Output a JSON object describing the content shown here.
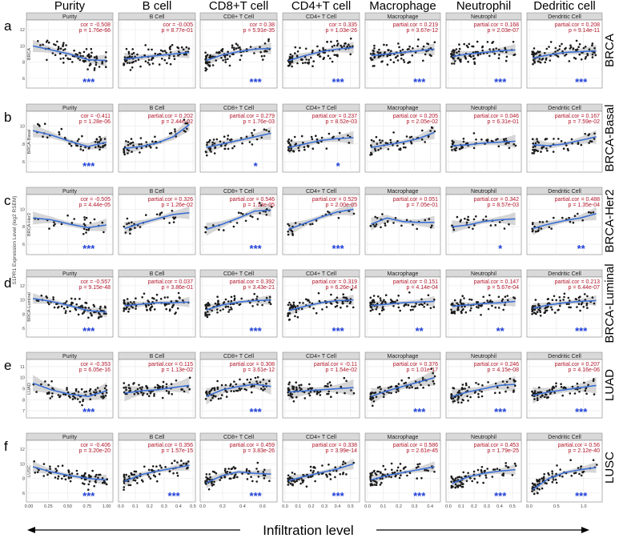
{
  "figure": {
    "columns": [
      "Purity",
      "B cell",
      "CD8+T cell",
      "CD4+T cell",
      "Macrophage",
      "Neutrophil",
      "Dedritic cell"
    ],
    "strip_labels": [
      "Purity",
      "B Cell",
      "CD8+ T Cell",
      "CD4+ T Cell",
      "Macrophage",
      "Neutrophil",
      "Dendritic Cell"
    ],
    "rows": [
      {
        "letter": "a",
        "name": "BRCA",
        "ylab": "BRCA"
      },
      {
        "letter": "b",
        "name": "BRCA-Basal",
        "ylab": "BRCA-Basal"
      },
      {
        "letter": "c",
        "name": "BRCA-Her2",
        "ylab": "BRCA-Her2"
      },
      {
        "letter": "d",
        "name": "BRCA-Luminal",
        "ylab": "BRCA-Luminal"
      },
      {
        "letter": "e",
        "name": "LUAD",
        "ylab": "LUAD"
      },
      {
        "letter": "f",
        "name": "LUSC",
        "ylab": "LUSC"
      }
    ],
    "y_axis_title": "S1PR1 Expression Level (log2 RSEM)",
    "x_axis_title": "Infiltration level",
    "colors": {
      "points": "#1a1a1a",
      "smooth": "#3b6fd4",
      "band": "#c8c8c8",
      "stats": "#b2182b",
      "stars": "#1f3fd8",
      "strip": "#d9d9d9",
      "panel_border": "#7f7f7f"
    }
  },
  "chart_data": {
    "type": "scatter",
    "x_ticks": [
      [
        "0.00",
        "0.25",
        "0.50",
        "0.75",
        "1.00"
      ],
      [
        "0.0",
        "0.1",
        "0.2",
        "0.3",
        "0.4",
        "0.5"
      ],
      [
        "0.0",
        "0.2",
        "0.4",
        "0.6"
      ],
      [
        "0.0",
        "0.1",
        "0.2",
        "0.3",
        "0.4",
        "0.5"
      ],
      [
        "0.0",
        "0.1",
        "0.2",
        "0.3",
        "0.4"
      ],
      [
        "0.0",
        "0.1",
        "0.2",
        "0.3",
        "0.4",
        "0.5"
      ],
      [
        "0.0",
        "0.5",
        "1.0"
      ]
    ],
    "x_tick_values": [
      [
        0,
        0.25,
        0.5,
        0.75,
        1.0
      ],
      [
        0,
        0.1,
        0.2,
        0.3,
        0.4,
        0.5
      ],
      [
        0,
        0.2,
        0.4,
        0.6
      ],
      [
        0,
        0.1,
        0.2,
        0.3,
        0.4,
        0.5
      ],
      [
        0,
        0.1,
        0.2,
        0.3,
        0.4
      ],
      [
        0,
        0.1,
        0.2,
        0.3,
        0.4,
        0.5
      ],
      [
        0,
        0.5,
        1.0
      ]
    ],
    "x_ranges": [
      [
        0,
        1.05
      ],
      [
        0,
        0.5
      ],
      [
        0,
        0.72
      ],
      [
        0,
        0.55
      ],
      [
        0,
        0.45
      ],
      [
        0,
        0.55
      ],
      [
        0,
        1.3
      ]
    ],
    "y_ticks": [
      [
        "6",
        "8",
        "10",
        "12"
      ],
      [
        "6",
        "8",
        "10"
      ],
      [
        "6",
        "8",
        "10"
      ],
      [
        "6",
        "8",
        "10",
        "12"
      ],
      [
        "7",
        "8",
        "9",
        "10",
        "11"
      ],
      [
        "6",
        "8",
        "10",
        "12"
      ]
    ],
    "y_tick_values": [
      [
        6,
        8,
        10,
        12
      ],
      [
        6,
        8,
        10
      ],
      [
        6,
        8,
        10
      ],
      [
        6,
        8,
        10,
        12
      ],
      [
        7,
        8,
        9,
        10,
        11
      ],
      [
        6,
        8,
        10,
        12
      ]
    ],
    "y_ranges": [
      [
        5,
        13
      ],
      [
        5,
        11.5
      ],
      [
        5,
        11.5
      ],
      [
        5,
        13
      ],
      [
        6.5,
        11.5
      ],
      [
        5,
        13
      ]
    ],
    "panels": [
      [
        {
          "l1": "cor = -0.508",
          "l2": "p = 1.76e-66",
          "sig": "***",
          "trend": [
            10.0,
            9.5,
            9.0,
            8.3,
            8.2
          ],
          "n": 90
        },
        {
          "l1": "cor = -0.005",
          "l2": "p = 8.77e-01",
          "sig": "",
          "trend": [
            8.4,
            8.6,
            8.8,
            9.0,
            9.2
          ],
          "n": 90
        },
        {
          "l1": "cor = 0.38",
          "l2": "p = 5.91e-35",
          "sig": "***",
          "trend": [
            8.2,
            8.9,
            9.3,
            9.6,
            9.7
          ],
          "n": 90
        },
        {
          "l1": "cor = 0.335",
          "l2": "p = 1.03e-26",
          "sig": "***",
          "trend": [
            8.2,
            8.8,
            9.3,
            9.6,
            9.8
          ],
          "n": 90
        },
        {
          "l1": "partial.cor = 0.219",
          "l2": "p = 3.67e-12",
          "sig": "***",
          "trend": [
            8.8,
            9.0,
            9.2,
            9.4,
            9.6
          ],
          "n": 90
        },
        {
          "l1": "partial.cor = 0.168",
          "l2": "p = 2.03e-07",
          "sig": "***",
          "trend": [
            8.7,
            9.0,
            9.2,
            9.4,
            9.5
          ],
          "n": 90
        },
        {
          "l1": "partial.cor = 0.208",
          "l2": "p = 9.14e-11",
          "sig": "***",
          "trend": [
            8.5,
            8.9,
            9.2,
            9.3,
            9.4
          ],
          "n": 90
        }
      ],
      [
        {
          "l1": "cor = -0.411",
          "l2": "p = 1.28e-06",
          "sig": "***",
          "trend": [
            9.5,
            9.0,
            8.3,
            7.7,
            8.2
          ],
          "n": 50
        },
        {
          "l1": "partial.cor = 0.202",
          "l2": "p = 2.44e-02",
          "sig": "",
          "trend": [
            7.5,
            7.7,
            8.1,
            8.8,
            10.2
          ],
          "n": 50
        },
        {
          "l1": "partial.cor = 0.279",
          "l2": "p = 1.76e-03",
          "sig": "*",
          "trend": [
            7.6,
            8.0,
            8.4,
            8.8,
            9.2
          ],
          "n": 50
        },
        {
          "l1": "partial.cor = 0.237",
          "l2": "p = 8.52e-03",
          "sig": "*",
          "trend": [
            7.6,
            8.0,
            8.4,
            8.6,
            8.7
          ],
          "n": 50
        },
        {
          "l1": "partial.cor = 0.205",
          "l2": "p = 2.05e-02",
          "sig": "",
          "trend": [
            7.6,
            7.9,
            8.2,
            8.6,
            9.3
          ],
          "n": 50
        },
        {
          "l1": "partial.cor = 0.046",
          "l2": "p = 6.31e-01",
          "sig": "",
          "trend": [
            7.8,
            7.9,
            8.1,
            8.2,
            8.3
          ],
          "n": 50
        },
        {
          "l1": "partial.cor = 0.167",
          "l2": "p = 7.59e-02",
          "sig": "",
          "trend": [
            7.9,
            7.8,
            8.0,
            8.4,
            8.8
          ],
          "n": 50
        }
      ],
      [
        {
          "l1": "cor = -0.505",
          "l2": "p = 4.44e-05",
          "sig": "***",
          "trend": [
            9.0,
            8.8,
            8.3,
            7.9,
            8.2
          ],
          "n": 28
        },
        {
          "l1": "partial.cor = 0.326",
          "l2": "p = 1.26e-02",
          "sig": "",
          "trend": [
            7.8,
            8.4,
            8.9,
            9.4,
            9.6
          ],
          "n": 28
        },
        {
          "l1": "partial.cor = 0.546",
          "l2": "p = 1.13e-05",
          "sig": "***",
          "trend": [
            7.7,
            8.3,
            9.0,
            9.8,
            9.9
          ],
          "n": 28
        },
        {
          "l1": "partial.cor = 0.529",
          "l2": "p = 2.00e-05",
          "sig": "***",
          "trend": [
            7.7,
            8.4,
            9.1,
            9.7,
            10.0
          ],
          "n": 28
        },
        {
          "l1": "partial.cor = 0.051",
          "l2": "p = 7.05e-01",
          "sig": "",
          "trend": [
            8.3,
            9.0,
            8.6,
            8.5,
            8.5
          ],
          "n": 28
        },
        {
          "l1": "partial.cor = 0.342",
          "l2": "p = 8.57e-03",
          "sig": "*",
          "trend": [
            8.0,
            8.2,
            8.6,
            8.8,
            8.9
          ],
          "n": 28
        },
        {
          "l1": "partial.cor = 0.488",
          "l2": "p = 1.35e-04",
          "sig": "**",
          "trend": [
            7.8,
            8.3,
            8.7,
            9.0,
            9.5
          ],
          "n": 28
        }
      ],
      [
        {
          "l1": "cor = -0.557",
          "l2": "p = 9.15e-48",
          "sig": "***",
          "trend": [
            10.2,
            9.8,
            9.2,
            8.5,
            8.3
          ],
          "n": 80
        },
        {
          "l1": "partial.cor = 0.037",
          "l2": "p = 3.86e-01",
          "sig": "",
          "trend": [
            9.2,
            9.4,
            9.6,
            9.6,
            9.7
          ],
          "n": 80
        },
        {
          "l1": "partial.cor = 0.392",
          "l2": "p = 3.43e-21",
          "sig": "***",
          "trend": [
            8.6,
            9.3,
            9.7,
            9.9,
            10.0
          ],
          "n": 80
        },
        {
          "l1": "partial.cor = 0.319",
          "l2": "p = 6.26e-14",
          "sig": "***",
          "trend": [
            8.5,
            9.1,
            9.6,
            9.9,
            10.0
          ],
          "n": 80
        },
        {
          "l1": "partial.cor = 0.151",
          "l2": "p = 4.14e-04",
          "sig": "**",
          "trend": [
            9.2,
            9.4,
            9.6,
            9.7,
            9.8
          ],
          "n": 80
        },
        {
          "l1": "partial.cor = 0.147",
          "l2": "p = 5.67e-04",
          "sig": "**",
          "trend": [
            9.1,
            9.3,
            9.5,
            9.6,
            9.8
          ],
          "n": 80
        },
        {
          "l1": "partial.cor = 0.213",
          "l2": "p = 6.44e-07",
          "sig": "***",
          "trend": [
            8.8,
            9.3,
            9.6,
            9.8,
            9.9
          ],
          "n": 80
        }
      ],
      [
        {
          "l1": "cor = -0.353",
          "l2": "p = 6.05e-16",
          "sig": "***",
          "trend": [
            9.5,
            8.9,
            8.5,
            8.3,
            8.8
          ],
          "n": 70
        },
        {
          "l1": "partial.cor = 0.115",
          "l2": "p = 1.13e-02",
          "sig": "",
          "trend": [
            8.6,
            8.8,
            8.9,
            9.1,
            9.3
          ],
          "n": 70
        },
        {
          "l1": "partial.cor = 0.308",
          "l2": "p = 3.61e-12",
          "sig": "***",
          "trend": [
            8.3,
            8.9,
            9.2,
            9.4,
            9.2
          ],
          "n": 70
        },
        {
          "l1": "partial.cor = -0.11",
          "l2": "p = 1.54e-02",
          "sig": "",
          "trend": [
            8.7,
            8.8,
            8.9,
            9.0,
            9.1
          ],
          "n": 70
        },
        {
          "l1": "partial.cor = 0.376",
          "l2": "p = 1.01e-17",
          "sig": "***",
          "trend": [
            8.3,
            8.8,
            9.2,
            9.6,
            10.0
          ],
          "n": 70
        },
        {
          "l1": "partial.cor = 0.246",
          "l2": "p = 4.15e-08",
          "sig": "***",
          "trend": [
            8.3,
            8.7,
            9.0,
            9.3,
            9.4
          ],
          "n": 70
        },
        {
          "l1": "partial.cor = 0.207",
          "l2": "p = 4.16e-06",
          "sig": "***",
          "trend": [
            8.4,
            8.7,
            8.9,
            9.1,
            9.3
          ],
          "n": 70
        }
      ],
      [
        {
          "l1": "cor = -0.406",
          "l2": "p = 3.20e-20",
          "sig": "***",
          "trend": [
            9.6,
            8.9,
            8.4,
            8.0,
            7.8
          ],
          "n": 75
        },
        {
          "l1": "partial.cor = 0.356",
          "l2": "p = 1.57e-15",
          "sig": "***",
          "trend": [
            7.6,
            8.5,
            9.0,
            9.4,
            9.8
          ],
          "n": 75
        },
        {
          "l1": "partial.cor = 0.459",
          "l2": "p = 3.83e-26",
          "sig": "***",
          "trend": [
            7.4,
            8.4,
            8.9,
            8.7,
            8.6
          ],
          "n": 75
        },
        {
          "l1": "partial.cor = 0.338",
          "l2": "p = 3.99e-14",
          "sig": "***",
          "trend": [
            7.7,
            8.3,
            8.8,
            9.3,
            10.0
          ],
          "n": 75
        },
        {
          "l1": "partial.cor = 0.586",
          "l2": "p = 2.61e-45",
          "sig": "***",
          "trend": [
            7.8,
            8.4,
            8.8,
            9.2,
            9.6
          ],
          "n": 75
        },
        {
          "l1": "partial.cor = 0.453",
          "l2": "p = 1.79e-25",
          "sig": "***",
          "trend": [
            7.3,
            8.2,
            8.7,
            9.0,
            9.2
          ],
          "n": 75
        },
        {
          "l1": "partial.cor = 0.56",
          "l2": "p = 2.12e-40",
          "sig": "***",
          "trend": [
            6.5,
            8.0,
            8.8,
            9.2,
            9.5
          ],
          "n": 75
        }
      ]
    ]
  }
}
